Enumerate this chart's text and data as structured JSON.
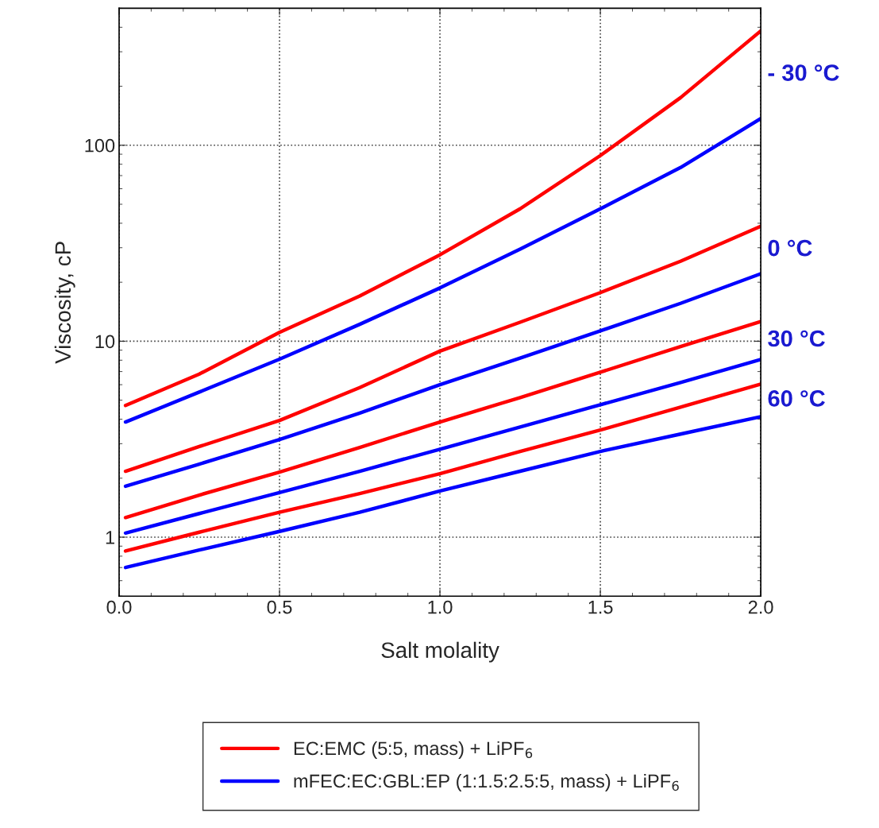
{
  "chart_data": {
    "type": "line",
    "xlabel": "Salt molality",
    "ylabel": "Viscosity, cP",
    "x": [
      0.02,
      0.25,
      0.5,
      0.75,
      1.0,
      1.25,
      1.5,
      1.75,
      2.0
    ],
    "series": [
      {
        "name": "EC:EMC (5:5, mass) + LiPF$_{6}$",
        "color": "#ff0000",
        "values": [
          4.7,
          6.8,
          11.1,
          17,
          27.6,
          47.4,
          88.6,
          175,
          383
        ]
      },
      {
        "name": "mFEC:EC:GBL:EP (1:1.5:2.5:5, mass) + LiPF$_{6}$",
        "color": "#0000ff",
        "values": [
          3.87,
          5.5,
          8.1,
          12.2,
          18.7,
          29.5,
          47.4,
          77,
          137
        ]
      },
      {
        "color": "#ff0000",
        "values": [
          2.17,
          2.9,
          3.94,
          5.8,
          8.9,
          12.5,
          17.7,
          25.6,
          38.6
        ]
      },
      {
        "color": "#0000ff",
        "values": [
          1.82,
          2.36,
          3.15,
          4.3,
          6.0,
          8.2,
          11.3,
          15.6,
          22.1
        ]
      },
      {
        "color": "#ff0000",
        "values": [
          1.26,
          1.64,
          2.15,
          2.87,
          3.87,
          5.16,
          6.95,
          9.4,
          12.6
        ]
      },
      {
        "color": "#0000ff",
        "values": [
          1.05,
          1.32,
          1.69,
          2.17,
          2.81,
          3.65,
          4.74,
          6.15,
          8.07
        ]
      },
      {
        "color": "#ff0000",
        "values": [
          0.85,
          1.06,
          1.34,
          1.67,
          2.11,
          2.74,
          3.52,
          4.61,
          6.04
        ]
      },
      {
        "color": "#0000ff",
        "values": [
          0.7,
          0.86,
          1.07,
          1.34,
          1.72,
          2.17,
          2.74,
          3.36,
          4.12
        ]
      }
    ],
    "log": "y",
    "xlim": [
      0,
      2
    ],
    "ylim": [
      0.5,
      500
    ],
    "xticks": [
      {
        "value": 0,
        "label": "0.0"
      },
      {
        "value": 0.5,
        "label": "0.5"
      },
      {
        "value": 1,
        "label": "1.0"
      },
      {
        "value": 1.5,
        "label": "1.5"
      },
      {
        "value": 2,
        "label": "2.0"
      }
    ],
    "yticks": [
      1,
      10,
      100
    ],
    "grid": true,
    "line_style": "solid",
    "marker": "none",
    "legend": "bottom",
    "annotations": [
      "- 30 °C",
      "0 °C",
      "30 °C",
      "60 °C"
    ]
  }
}
